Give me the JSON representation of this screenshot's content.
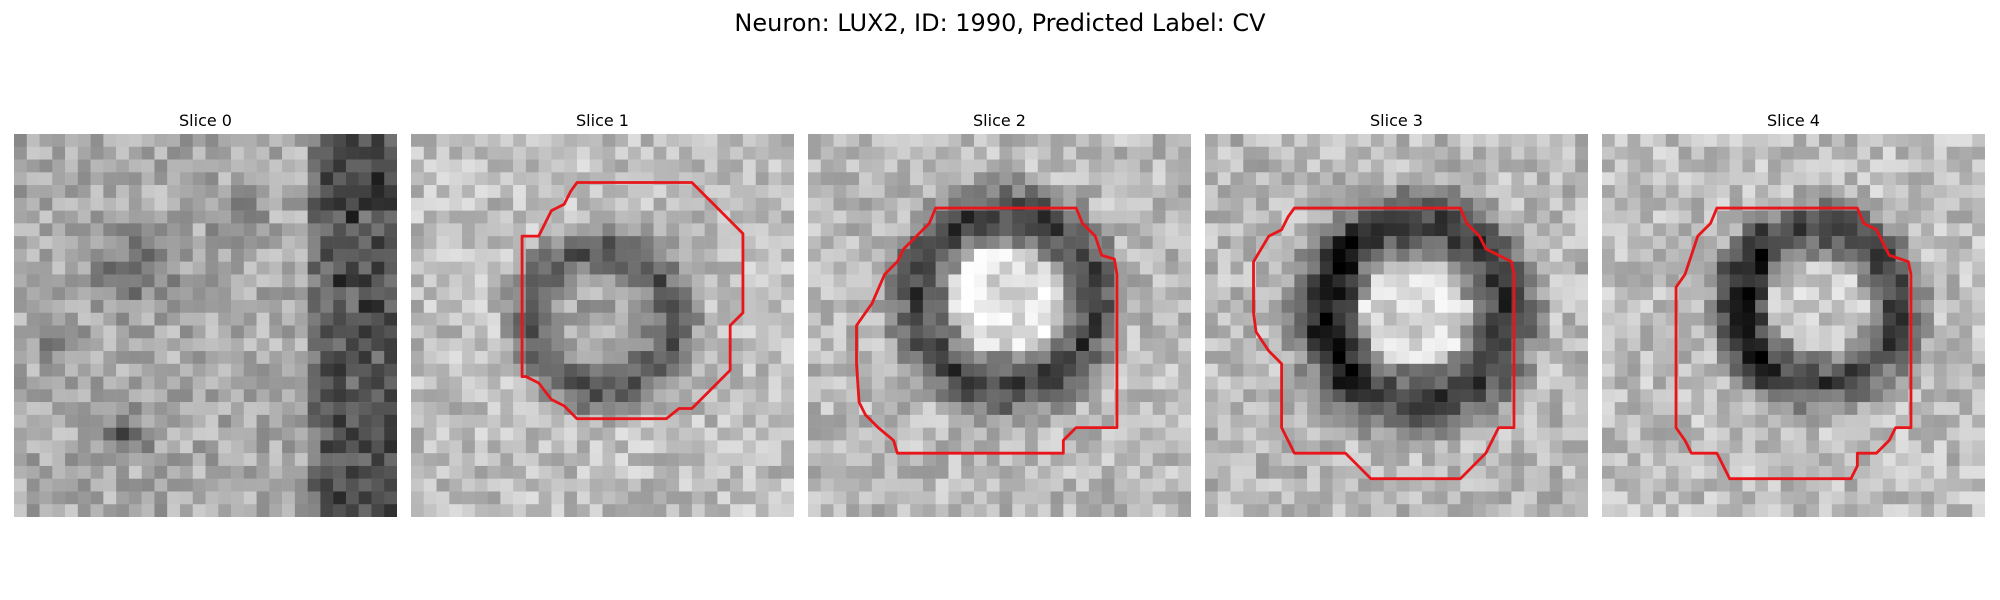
{
  "figure": {
    "title": "Neuron: LUX2, ID: 1990, Predicted Label: CV"
  },
  "slices": [
    {
      "title": "Slice 0",
      "has_contour": false
    },
    {
      "title": "Slice 1",
      "has_contour": true
    },
    {
      "title": "Slice 2",
      "has_contour": true
    },
    {
      "title": "Slice 3",
      "has_contour": true
    },
    {
      "title": "Slice 4",
      "has_contour": true
    }
  ],
  "colors": {
    "background": "#ffffff",
    "contour": "#e8161b",
    "colormap": "grayscale"
  }
}
